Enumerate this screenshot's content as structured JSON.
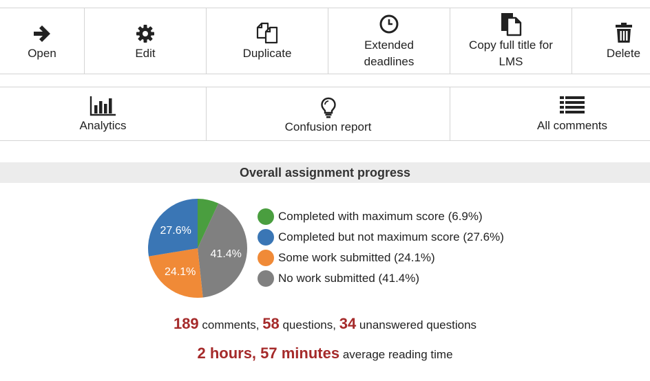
{
  "toolbar_row1": [
    {
      "label": "Open",
      "icon": "arrow-right-icon"
    },
    {
      "label": "Edit",
      "icon": "gear-icon"
    },
    {
      "label": "Duplicate",
      "icon": "duplicate-icon"
    },
    {
      "label": "Extended\ndeadlines",
      "icon": "clock-icon"
    },
    {
      "label": "Copy full title for\nLMS",
      "icon": "copy-document-icon"
    },
    {
      "label": "Delete",
      "icon": "trash-icon"
    }
  ],
  "toolbar_row2": [
    {
      "label": "Analytics",
      "icon": "bar-chart-icon"
    },
    {
      "label": "Confusion report",
      "icon": "lightbulb-icon"
    },
    {
      "label": "All comments",
      "icon": "list-icon"
    }
  ],
  "progress": {
    "title": "Overall assignment progress"
  },
  "chart_data": {
    "type": "pie",
    "slices": [
      {
        "name": "Completed with maximum score",
        "value": 6.9,
        "color": "#4a9e3f",
        "label": ""
      },
      {
        "name": "No work submitted",
        "value": 41.4,
        "color": "#808080",
        "label": "41.4%"
      },
      {
        "name": "Some work submitted",
        "value": 24.1,
        "color": "#f08a37",
        "label": "24.1%"
      },
      {
        "name": "Completed but not maximum score",
        "value": 27.6,
        "color": "#3a76b5",
        "label": "27.6%"
      }
    ],
    "legend": [
      {
        "text": "Completed with maximum score (6.9%)",
        "color": "#4a9e3f"
      },
      {
        "text": "Completed but not maximum score (27.6%)",
        "color": "#3a76b5"
      },
      {
        "text": "Some work submitted (24.1%)",
        "color": "#f08a37"
      },
      {
        "text": "No work submitted (41.4%)",
        "color": "#808080"
      }
    ],
    "legend_position": "right"
  },
  "stats": {
    "comments_count": "189",
    "comments_label": " comments, ",
    "questions_count": "58",
    "questions_label": " questions, ",
    "unanswered_count": "34",
    "unanswered_label": " unanswered questions",
    "reading_time": "2 hours, 57 minutes",
    "reading_label": " average reading time"
  }
}
